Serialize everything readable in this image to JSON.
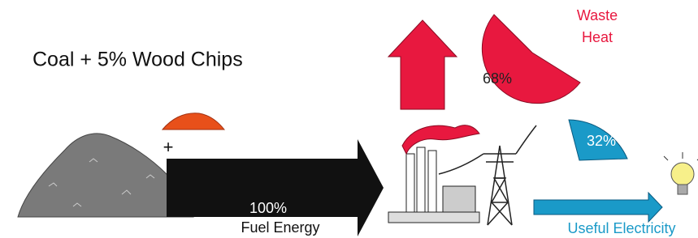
{
  "title": "Coal + 5% Wood Chips",
  "plus": "+",
  "fuel": {
    "percent": "100%",
    "label": "Fuel Energy"
  },
  "waste": {
    "label_line1": "Waste",
    "label_line2": "Heat",
    "percent": "68%"
  },
  "electricity": {
    "percent": "32%",
    "label": "Useful Electricity"
  }
}
